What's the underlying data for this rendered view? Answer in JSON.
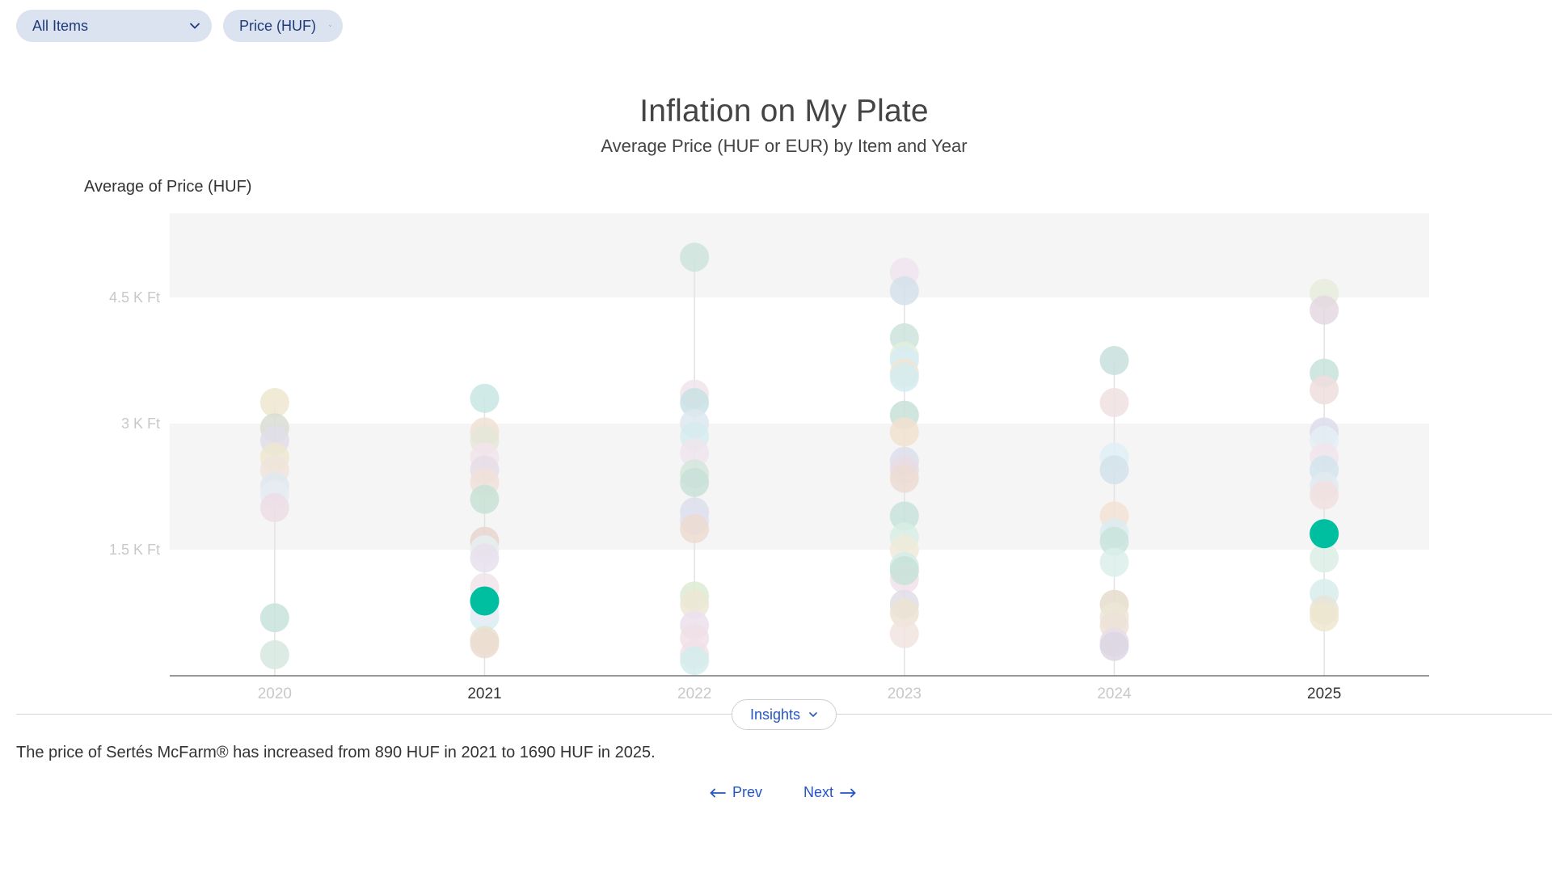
{
  "filters": {
    "items": {
      "value": "All Items"
    },
    "metric": {
      "value": "Price (HUF)"
    }
  },
  "chart_data": {
    "type": "scatter",
    "title": "Inflation on My Plate",
    "subtitle": "Average Price (HUF or EUR) by Item and Year",
    "ylabel": "Average of Price (HUF)",
    "xlabel": "",
    "categories": [
      "2020",
      "2021",
      "2022",
      "2023",
      "2024",
      "2025"
    ],
    "highlighted_categories": [
      "2021",
      "2025"
    ],
    "ylim": [
      0,
      5500
    ],
    "yticks": [
      {
        "value": 1500,
        "label": "1.5 K Ft"
      },
      {
        "value": 3000,
        "label": "3 K Ft"
      },
      {
        "value": 4500,
        "label": "4.5 K Ft"
      }
    ],
    "grid": "alternating horizontal bands",
    "highlight_color": "#00bfa0",
    "highlight_series": {
      "name": "Sertés McFarm®",
      "points": [
        {
          "x": "2021",
          "y": 890
        },
        {
          "x": "2025",
          "y": 1690
        }
      ]
    },
    "background_points": [
      {
        "x": "2020",
        "y": 3250,
        "color": "#ede6d0"
      },
      {
        "x": "2020",
        "y": 2950,
        "color": "#d9ddd4"
      },
      {
        "x": "2020",
        "y": 2800,
        "color": "#e0dde8"
      },
      {
        "x": "2020",
        "y": 2600,
        "color": "#ede6d0"
      },
      {
        "x": "2020",
        "y": 2450,
        "color": "#f0e4dc"
      },
      {
        "x": "2020",
        "y": 2250,
        "color": "#dfe9ee"
      },
      {
        "x": "2020",
        "y": 2150,
        "color": "#e6ecf2"
      },
      {
        "x": "2020",
        "y": 2000,
        "color": "#eddde5"
      },
      {
        "x": "2020",
        "y": 690,
        "color": "#c8e2dc"
      },
      {
        "x": "2020",
        "y": 250,
        "color": "#d6e8df"
      },
      {
        "x": "2021",
        "y": 3300,
        "color": "#c8e6e3"
      },
      {
        "x": "2021",
        "y": 2900,
        "color": "#f0e0d2"
      },
      {
        "x": "2021",
        "y": 2800,
        "color": "#e4e8d8"
      },
      {
        "x": "2021",
        "y": 2600,
        "color": "#f2e4ec"
      },
      {
        "x": "2021",
        "y": 2450,
        "color": "#e6dde8"
      },
      {
        "x": "2021",
        "y": 2300,
        "color": "#f0e0d8"
      },
      {
        "x": "2021",
        "y": 2100,
        "color": "#c8e2d6"
      },
      {
        "x": "2021",
        "y": 1600,
        "color": "#e8d5cc"
      },
      {
        "x": "2021",
        "y": 1500,
        "color": "#e6eef0"
      },
      {
        "x": "2021",
        "y": 1400,
        "color": "#e8e0ee"
      },
      {
        "x": "2021",
        "y": 1050,
        "color": "#f2e4ec"
      },
      {
        "x": "2021",
        "y": 700,
        "color": "#d6eef0"
      },
      {
        "x": "2021",
        "y": 780,
        "color": "#e8ecf4"
      },
      {
        "x": "2021",
        "y": 420,
        "color": "#e8e2d0"
      },
      {
        "x": "2021",
        "y": 380,
        "color": "#ecdcd0"
      },
      {
        "x": "2022",
        "y": 4980,
        "color": "#cce4dc"
      },
      {
        "x": "2022",
        "y": 3350,
        "color": "#f2e4ec"
      },
      {
        "x": "2022",
        "y": 3250,
        "color": "#c8e2e4"
      },
      {
        "x": "2022",
        "y": 3000,
        "color": "#dde8f0"
      },
      {
        "x": "2022",
        "y": 2850,
        "color": "#d6ecf0"
      },
      {
        "x": "2022",
        "y": 2650,
        "color": "#f0e4ec"
      },
      {
        "x": "2022",
        "y": 2400,
        "color": "#d4e6dc"
      },
      {
        "x": "2022",
        "y": 2300,
        "color": "#c8e0d8"
      },
      {
        "x": "2022",
        "y": 1950,
        "color": "#dcdeec"
      },
      {
        "x": "2022",
        "y": 1850,
        "color": "#e0e2ee"
      },
      {
        "x": "2022",
        "y": 1750,
        "color": "#ecdcd0"
      },
      {
        "x": "2022",
        "y": 950,
        "color": "#dcecd4"
      },
      {
        "x": "2022",
        "y": 850,
        "color": "#ece6d4"
      },
      {
        "x": "2022",
        "y": 600,
        "color": "#ece0ee"
      },
      {
        "x": "2022",
        "y": 450,
        "color": "#f0e0e8"
      },
      {
        "x": "2022",
        "y": 250,
        "color": "#f2e2e6"
      },
      {
        "x": "2022",
        "y": 180,
        "color": "#d4ecec"
      },
      {
        "x": "2023",
        "y": 4800,
        "color": "#f0e4f0"
      },
      {
        "x": "2023",
        "y": 4580,
        "color": "#d4e0ea"
      },
      {
        "x": "2023",
        "y": 4020,
        "color": "#cce4dc"
      },
      {
        "x": "2023",
        "y": 3800,
        "color": "#e0eedc"
      },
      {
        "x": "2023",
        "y": 3750,
        "color": "#d8ecf2"
      },
      {
        "x": "2023",
        "y": 3600,
        "color": "#f2e4d4"
      },
      {
        "x": "2023",
        "y": 3550,
        "color": "#d4ecee"
      },
      {
        "x": "2023",
        "y": 3100,
        "color": "#c8e0d8"
      },
      {
        "x": "2023",
        "y": 2900,
        "color": "#f2e2d0"
      },
      {
        "x": "2023",
        "y": 2550,
        "color": "#dcdeec"
      },
      {
        "x": "2023",
        "y": 2450,
        "color": "#e8dce4"
      },
      {
        "x": "2023",
        "y": 2350,
        "color": "#ecdcd4"
      },
      {
        "x": "2023",
        "y": 1900,
        "color": "#c8e2da"
      },
      {
        "x": "2023",
        "y": 1650,
        "color": "#d8eee4"
      },
      {
        "x": "2023",
        "y": 1500,
        "color": "#f0ead8"
      },
      {
        "x": "2023",
        "y": 1300,
        "color": "#d4ecea"
      },
      {
        "x": "2023",
        "y": 1150,
        "color": "#f2e2ec"
      },
      {
        "x": "2023",
        "y": 1250,
        "color": "#c8e2d8"
      },
      {
        "x": "2023",
        "y": 850,
        "color": "#e0dde8"
      },
      {
        "x": "2023",
        "y": 750,
        "color": "#ece4d2"
      },
      {
        "x": "2023",
        "y": 500,
        "color": "#f2e4e0"
      },
      {
        "x": "2024",
        "y": 3750,
        "color": "#c8e0dc"
      },
      {
        "x": "2024",
        "y": 3250,
        "color": "#f0e0e0"
      },
      {
        "x": "2024",
        "y": 2600,
        "color": "#dfeef4"
      },
      {
        "x": "2024",
        "y": 2450,
        "color": "#d4e2ea"
      },
      {
        "x": "2024",
        "y": 1900,
        "color": "#f2e2d4"
      },
      {
        "x": "2024",
        "y": 1700,
        "color": "#dcecf0"
      },
      {
        "x": "2024",
        "y": 1600,
        "color": "#c8e4dc"
      },
      {
        "x": "2024",
        "y": 1350,
        "color": "#dcefea"
      },
      {
        "x": "2024",
        "y": 850,
        "color": "#e4dccc"
      },
      {
        "x": "2024",
        "y": 700,
        "color": "#ece6d6"
      },
      {
        "x": "2024",
        "y": 600,
        "color": "#ede2d8"
      },
      {
        "x": "2024",
        "y": 400,
        "color": "#e6dde8"
      },
      {
        "x": "2024",
        "y": 350,
        "color": "#dcd6e4"
      },
      {
        "x": "2025",
        "y": 4550,
        "color": "#e6ecdc"
      },
      {
        "x": "2025",
        "y": 4350,
        "color": "#e4d8e2"
      },
      {
        "x": "2025",
        "y": 3600,
        "color": "#c8e2dc"
      },
      {
        "x": "2025",
        "y": 3400,
        "color": "#f0dede"
      },
      {
        "x": "2025",
        "y": 2900,
        "color": "#dcdcec"
      },
      {
        "x": "2025",
        "y": 2800,
        "color": "#e4eef4"
      },
      {
        "x": "2025",
        "y": 2600,
        "color": "#f2e4ec"
      },
      {
        "x": "2025",
        "y": 2450,
        "color": "#d4e4ec"
      },
      {
        "x": "2025",
        "y": 2250,
        "color": "#e0eaf0"
      },
      {
        "x": "2025",
        "y": 2150,
        "color": "#f2e0e0"
      },
      {
        "x": "2025",
        "y": 1400,
        "color": "#dcefe6"
      },
      {
        "x": "2025",
        "y": 980,
        "color": "#d8ecec"
      },
      {
        "x": "2025",
        "y": 780,
        "color": "#e8e4d6"
      },
      {
        "x": "2025",
        "y": 700,
        "color": "#ede6d0"
      }
    ]
  },
  "insights": {
    "button_label": "Insights",
    "text": "The price of Sertés McFarm® has increased from 890 HUF in 2021 to 1690 HUF in 2025."
  },
  "nav": {
    "prev_label": "Prev",
    "next_label": "Next"
  }
}
